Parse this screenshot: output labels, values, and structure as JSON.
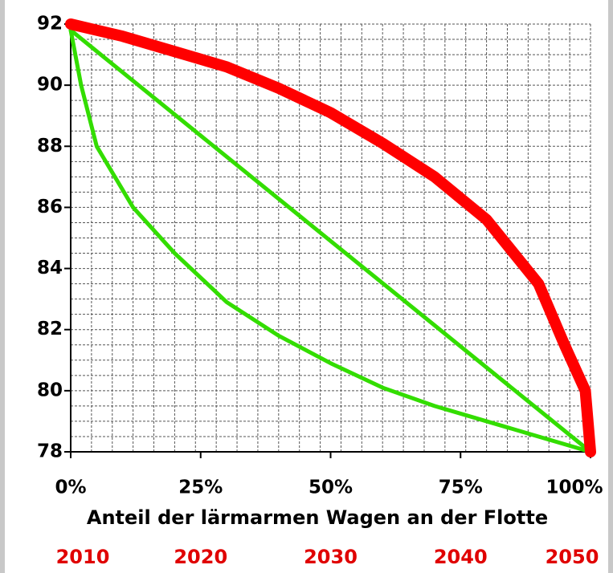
{
  "chart_data": {
    "type": "line",
    "xlabel": "Anteil der lärmarmen Wagen an der Flotte",
    "xlim": [
      0,
      100
    ],
    "xticks": [
      {
        "value": 0,
        "label": "0%"
      },
      {
        "value": 25,
        "label": "25%"
      },
      {
        "value": 50,
        "label": "50%"
      },
      {
        "value": 75,
        "label": "75%"
      },
      {
        "value": 100,
        "label": "100%"
      }
    ],
    "x2ticks": [
      {
        "value": 0,
        "label": "2010"
      },
      {
        "value": 25,
        "label": "2020"
      },
      {
        "value": 50,
        "label": "2030"
      },
      {
        "value": 75,
        "label": "2040"
      },
      {
        "value": 100,
        "label": "2050"
      }
    ],
    "x2color": "#e00000",
    "ylim": [
      78,
      92
    ],
    "yticks": [
      78,
      80,
      82,
      84,
      86,
      88,
      90,
      92
    ],
    "xminorticks": [
      0,
      4,
      8,
      12,
      16,
      20,
      24,
      28,
      32,
      36,
      40,
      44,
      48,
      52,
      56,
      60,
      64,
      68,
      72,
      76,
      80,
      84,
      88,
      92,
      96,
      100
    ],
    "yminorticks": [
      78,
      78.5,
      79,
      79.5,
      80,
      80.5,
      81,
      81.5,
      82,
      82.5,
      83,
      83.5,
      84,
      84.5,
      85,
      85.5,
      86,
      86.5,
      87,
      87.5,
      88,
      88.5,
      89,
      89.5,
      90,
      90.5,
      91,
      91.5,
      92
    ],
    "grid": true,
    "series": [
      {
        "color": "#33dd00",
        "line_width": 5,
        "x": [
          0,
          100
        ],
        "values": [
          91.8,
          78
        ]
      },
      {
        "color": "#33dd00",
        "line_width": 5,
        "x": [
          0,
          2,
          5,
          12,
          20,
          30,
          40,
          50,
          60,
          70,
          80,
          90,
          100
        ],
        "values": [
          91.8,
          90,
          88,
          86,
          84.5,
          82.9,
          81.8,
          80.9,
          80.1,
          79.5,
          79.0,
          78.5,
          78
        ]
      },
      {
        "color": "#ff0000",
        "line_width": 14,
        "x": [
          0,
          10,
          20,
          30,
          40,
          50,
          60,
          70,
          80,
          90,
          95,
          99,
          100
        ],
        "values": [
          92,
          91.6,
          91.1,
          90.6,
          89.9,
          89.1,
          88.1,
          87.0,
          85.6,
          83.5,
          81.5,
          80.0,
          78
        ]
      }
    ]
  }
}
